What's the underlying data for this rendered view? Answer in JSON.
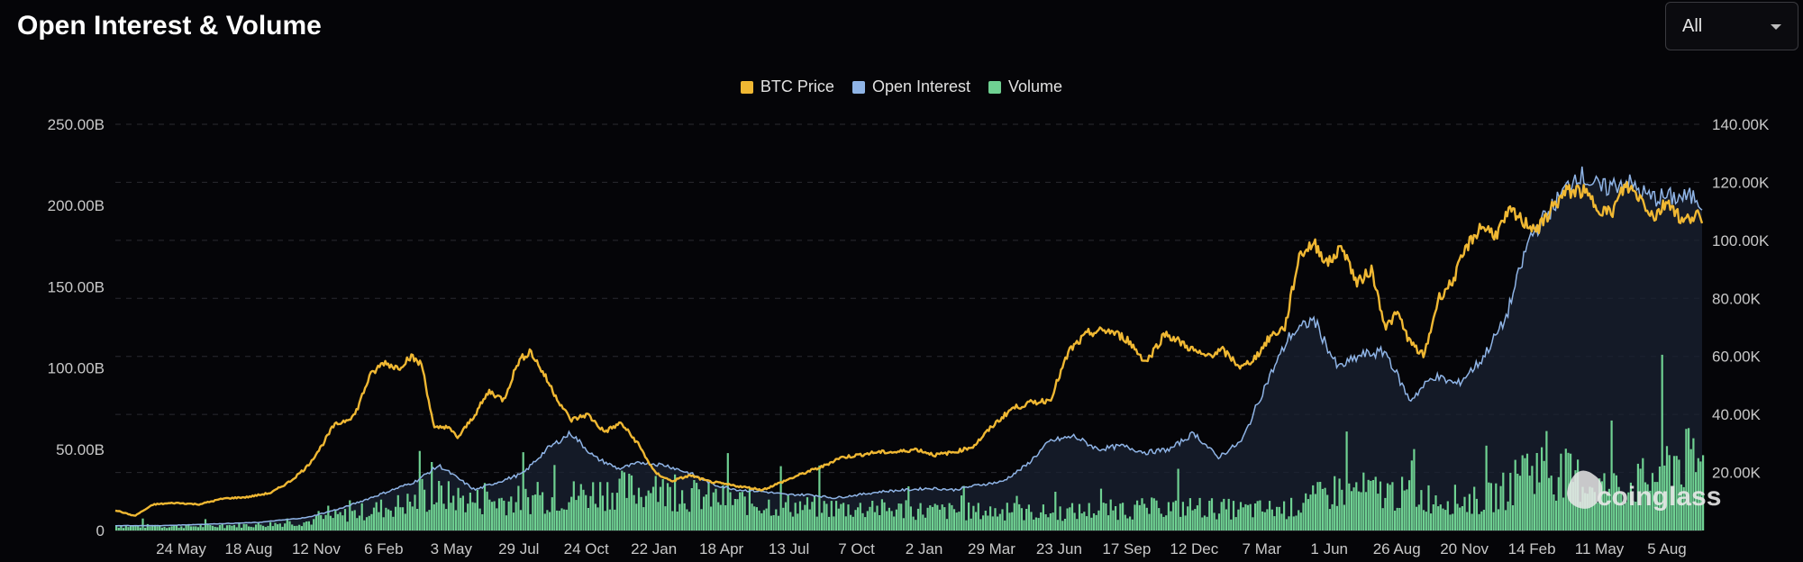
{
  "header": {
    "title": "Open Interest & Volume",
    "range_select_value": "All",
    "range_select_icon": "chevron-down-icon"
  },
  "watermark": {
    "text": "coinglass",
    "icon": "coinglass-logo-icon"
  },
  "colors": {
    "background": "#050508",
    "price": "#f0b833",
    "open_interest": "#8fb4e6",
    "open_interest_fill": "#1a2231",
    "volume": "#6fd192",
    "grid": "#2a2a30"
  },
  "chart_data": {
    "type": "line",
    "legend": [
      {
        "name": "BTC Price",
        "color": "#f0b833"
      },
      {
        "name": "Open Interest",
        "color": "#8fb4e6"
      },
      {
        "name": "Volume",
        "color": "#6fd192"
      }
    ],
    "legend_placement": "top-center",
    "grid": true,
    "x_ticks": [
      "24 May",
      "18 Aug",
      "12 Nov",
      "6 Feb",
      "3 May",
      "29 Jul",
      "24 Oct",
      "22 Jan",
      "18 Apr",
      "13 Jul",
      "7 Oct",
      "2 Jan",
      "29 Mar",
      "23 Jun",
      "17 Sep",
      "12 Dec",
      "7 Mar",
      "1 Jun",
      "26 Aug",
      "20 Nov",
      "14 Feb",
      "11 May",
      "5 Aug"
    ],
    "x_range": [
      "2020-03",
      "2025-09"
    ],
    "left_axis": {
      "ylim": [
        0,
        250
      ],
      "ticks": [
        "0",
        "50.00B",
        "100.00B",
        "150.00B",
        "200.00B",
        "250.00B"
      ],
      "tick_values": [
        0,
        50,
        100,
        150,
        200,
        250
      ],
      "unit": "B"
    },
    "right_axis": {
      "ylim": [
        0,
        140
      ],
      "ticks": [
        "20.00K",
        "40.00K",
        "60.00K",
        "80.00K",
        "100.00K",
        "120.00K",
        "140.00K"
      ],
      "tick_values": [
        20,
        40,
        60,
        80,
        100,
        120,
        140
      ],
      "unit": "K"
    },
    "series": [
      {
        "name": "BTC Price",
        "axis": "right",
        "x": [
          0,
          0.8,
          1.6,
          2.5,
          3.5,
          4.5,
          5.5,
          6.5,
          7.3,
          8.0,
          8.6,
          9.1,
          9.6,
          10.0,
          10.6,
          11.2,
          11.8,
          12.3,
          12.8,
          13.3,
          13.8,
          14.3,
          15.0,
          15.6,
          16.2,
          16.8,
          17.3,
          17.8,
          18.4,
          19.0,
          19.7,
          20.4,
          21.1,
          21.8,
          22.5,
          23.2,
          24.0,
          24.7,
          25.4,
          26.2,
          27.0,
          27.6,
          28.2,
          28.8,
          29.5,
          30.2,
          31.0,
          31.8,
          32.6,
          33.4,
          34.2,
          35.0,
          35.8,
          36.6,
          37.4,
          38.2,
          39.0,
          39.8,
          40.6,
          41.4,
          42.2,
          43.0,
          43.8,
          44.6,
          45.4,
          46.2,
          47.0,
          47.6,
          48.2,
          48.8,
          49.4,
          50.0,
          50.6,
          51.2,
          51.8,
          52.4,
          53.0,
          53.5,
          54.0,
          54.6,
          55.2,
          55.8,
          56.4,
          57.0,
          57.6,
          58.2,
          58.8,
          59.4,
          60.0,
          60.6,
          61.2,
          61.8,
          62.4,
          63.0,
          63.6,
          64.2,
          64.8,
          65.4,
          66.0,
          66.2
        ],
        "values": [
          7,
          5,
          9,
          9.5,
          9,
          11,
          11.5,
          13,
          17,
          22,
          29,
          36,
          38,
          40,
          53,
          58,
          56,
          60,
          57,
          35,
          36,
          32,
          40,
          48,
          45,
          58,
          62,
          55,
          46,
          38,
          40,
          34,
          37,
          30,
          20,
          17,
          19,
          17,
          16,
          15,
          14,
          16,
          18,
          20,
          22,
          25,
          26,
          27,
          27,
          28,
          26,
          27,
          29,
          36,
          42,
          44,
          45,
          62,
          68,
          69,
          66,
          58,
          68,
          64,
          60,
          62,
          56,
          60,
          67,
          70,
          95,
          99,
          92,
          98,
          85,
          90,
          70,
          75,
          65,
          60,
          80,
          86,
          98,
          105,
          102,
          110,
          106,
          104,
          112,
          117,
          117,
          112,
          109,
          119,
          115,
          108,
          114,
          106,
          110,
          104
        ]
      },
      {
        "name": "Open Interest",
        "axis": "left",
        "x": [
          0,
          2,
          4,
          6,
          8,
          9.5,
          11,
          12.5,
          13.5,
          14.3,
          15,
          16,
          17,
          18,
          19,
          20,
          21,
          22,
          23,
          24,
          25,
          26,
          27,
          28,
          29,
          30,
          31,
          32,
          33,
          34,
          35,
          36,
          37,
          38,
          39,
          40,
          41,
          42,
          43,
          44,
          45,
          46,
          47,
          48,
          49,
          50,
          51,
          52,
          53,
          54,
          55,
          56,
          57,
          58,
          59,
          60,
          61,
          62,
          63,
          64,
          65,
          66,
          66.2
        ],
        "values": [
          3,
          3,
          4,
          5,
          8,
          14,
          22,
          30,
          40,
          32,
          25,
          30,
          35,
          50,
          60,
          45,
          38,
          42,
          40,
          35,
          28,
          25,
          24,
          22,
          22,
          20,
          22,
          24,
          25,
          26,
          25,
          28,
          30,
          40,
          55,
          58,
          50,
          52,
          48,
          50,
          60,
          45,
          55,
          90,
          120,
          130,
          100,
          108,
          110,
          80,
          95,
          90,
          105,
          130,
          180,
          200,
          220,
          210,
          215,
          205,
          205,
          205,
          200
        ]
      },
      {
        "name": "Volume",
        "axis": "left",
        "x": [
          0,
          2,
          4,
          6,
          8,
          10,
          12,
          13.5,
          15,
          17,
          19,
          21,
          23,
          25,
          27,
          29,
          31,
          33,
          35,
          37,
          39,
          41,
          43,
          45,
          47,
          49,
          51,
          53,
          55,
          57,
          58,
          59,
          60,
          61,
          62,
          63,
          64,
          65,
          66
        ],
        "values": [
          3,
          3,
          3,
          4,
          6,
          12,
          18,
          24,
          20,
          21,
          24,
          28,
          26,
          22,
          18,
          16,
          15,
          14,
          13,
          13,
          12,
          14,
          15,
          16,
          14,
          15,
          28,
          26,
          22,
          20,
          28,
          45,
          40,
          35,
          30,
          30,
          35,
          50,
          45
        ]
      }
    ]
  }
}
